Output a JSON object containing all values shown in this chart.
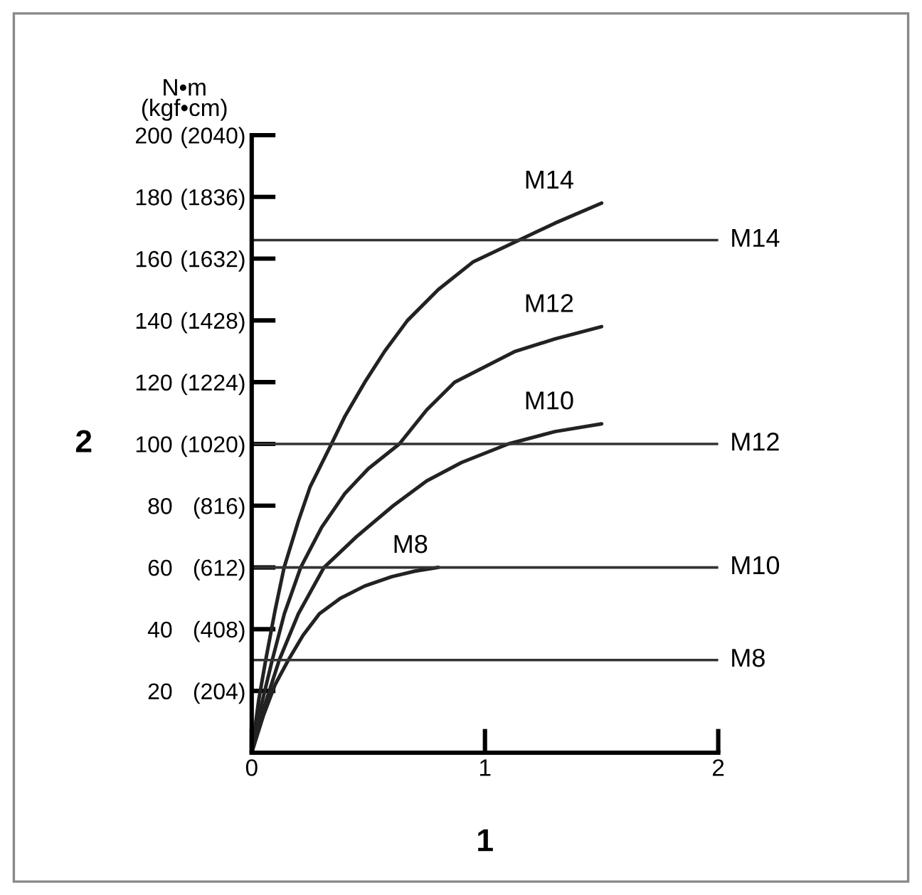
{
  "chart_data": {
    "type": "line",
    "xlabel": "1",
    "ylabel": "2",
    "annotations": [
      "N•m\n(kgf•cm)"
    ],
    "series": [
      {
        "name": "M14",
        "color": "#222222",
        "x": [
          0,
          0.03,
          0.06,
          0.1,
          0.139,
          0.2,
          0.25,
          0.342,
          0.4,
          0.485,
          0.57,
          0.668,
          0.8,
          0.95,
          1.146,
          1.3,
          1.5
        ],
        "values": [
          0,
          17,
          30,
          46,
          60,
          75,
          86,
          100,
          109,
          120,
          130,
          140,
          150,
          159,
          166,
          171.5,
          178
        ]
      },
      {
        "name": "M12",
        "color": "#222222",
        "x": [
          0,
          0.04,
          0.088,
          0.14,
          0.21,
          0.3,
          0.4,
          0.5,
          0.633,
          0.75,
          0.87,
          1.0,
          1.13,
          1.3,
          1.5
        ],
        "values": [
          0,
          15,
          30,
          45,
          60,
          73,
          84,
          92,
          100,
          111,
          120,
          125,
          130,
          134,
          138
        ]
      },
      {
        "name": "M10",
        "color": "#222222",
        "x": [
          0,
          0.05,
          0.118,
          0.2,
          0.31,
          0.45,
          0.607,
          0.75,
          0.9,
          1.1,
          1.3,
          1.5
        ],
        "values": [
          0,
          14,
          30,
          45,
          60,
          70,
          80,
          88,
          94,
          100,
          104,
          106.5
        ]
      },
      {
        "name": "M8",
        "color": "#222222",
        "x": [
          0,
          0.05,
          0.1,
          0.157,
          0.22,
          0.29,
          0.38,
          0.485,
          0.6,
          0.7,
          0.8
        ],
        "values": [
          0,
          12,
          22,
          30,
          38,
          45,
          50,
          54,
          57,
          58.8,
          60
        ]
      }
    ],
    "ref_lines": [
      {
        "axis": "y",
        "value": 166,
        "label": "M14",
        "color": "#333333"
      },
      {
        "axis": "y",
        "value": 100,
        "label": "M12",
        "color": "#333333"
      },
      {
        "axis": "y",
        "value": 60,
        "label": "M10",
        "color": "#333333"
      },
      {
        "axis": "y",
        "value": 30,
        "label": "M8",
        "color": "#333333"
      }
    ],
    "xlim": [
      0,
      2
    ],
    "ylim": [
      0,
      200
    ],
    "xticks": [
      0,
      1,
      2
    ],
    "yticks": [
      20,
      40,
      60,
      80,
      100,
      120,
      140,
      160,
      180,
      200
    ],
    "y2lim": [
      0,
      2040
    ],
    "y2ticks": [
      {
        "value": 204,
        "label": "(204)"
      },
      {
        "value": 408,
        "label": "(408)"
      },
      {
        "value": 612,
        "label": "(612)"
      },
      {
        "value": 816,
        "label": "(816)"
      },
      {
        "value": 1020,
        "label": "(1020)"
      },
      {
        "value": 1224,
        "label": "(1224)"
      },
      {
        "value": 1428,
        "label": "(1428)"
      },
      {
        "value": 1632,
        "label": "(1632)"
      },
      {
        "value": 1836,
        "label": "(1836)"
      },
      {
        "value": 2040,
        "label": "(2040)"
      }
    ],
    "grid": false,
    "legend": false,
    "marker": "none",
    "line_style": "solid"
  }
}
